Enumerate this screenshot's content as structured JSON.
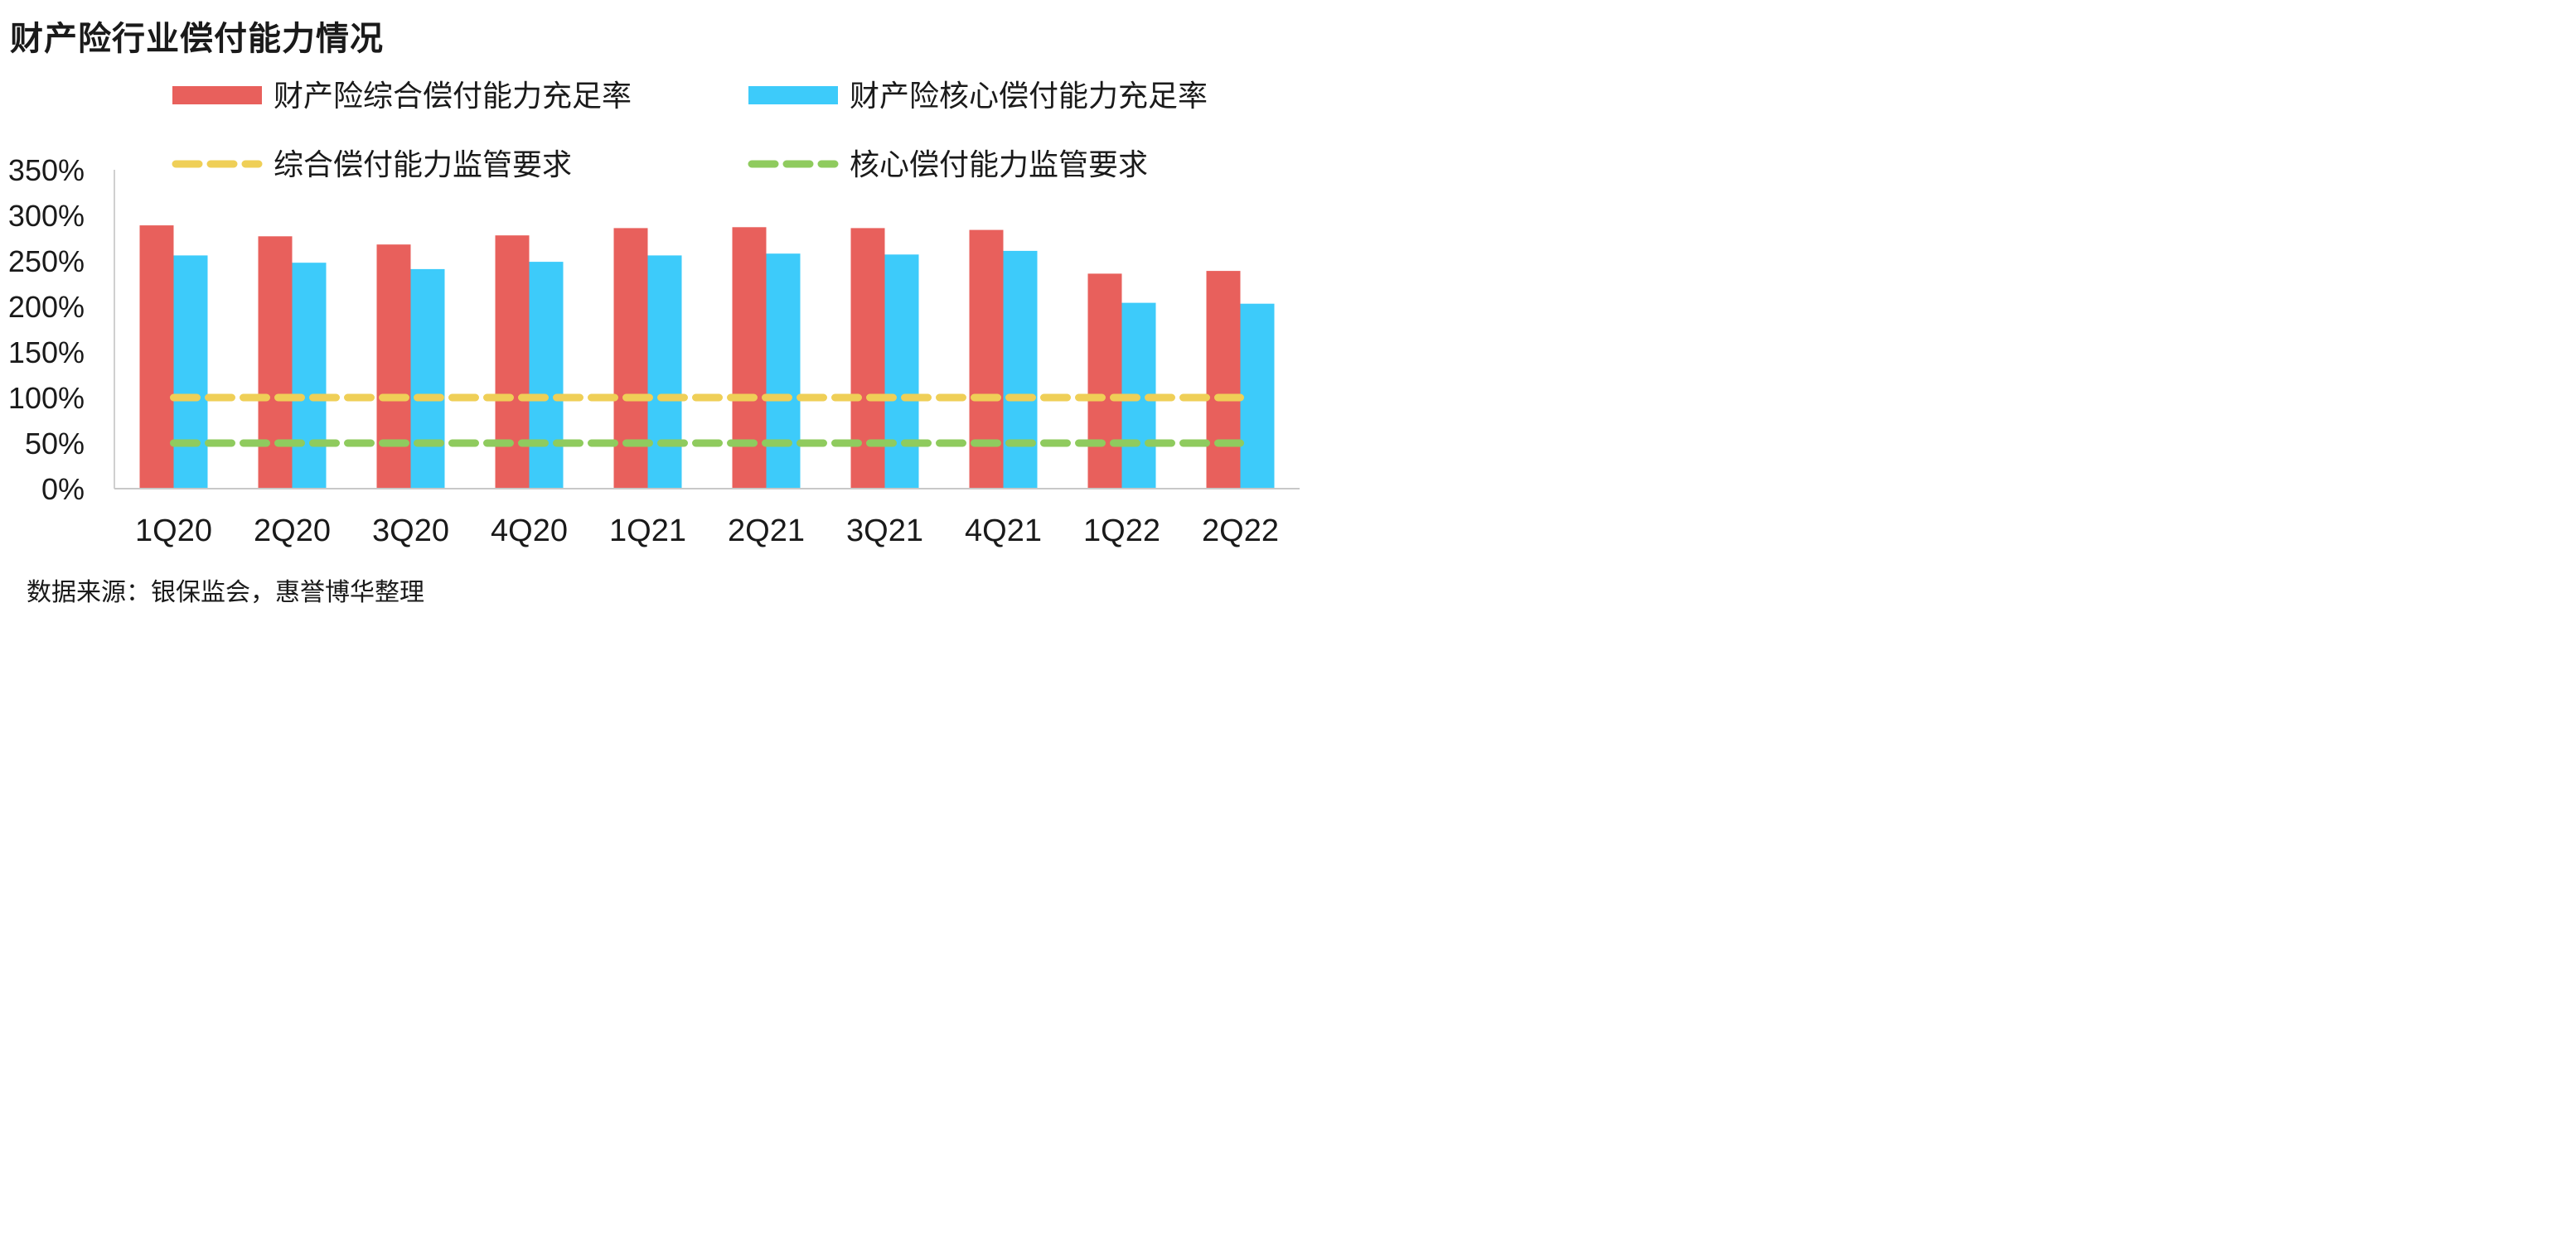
{
  "title": "财产险行业偿付能力情况",
  "source": "数据来源：银保监会，惠誉博华整理",
  "chart_data": {
    "type": "bar",
    "categories": [
      "1Q20",
      "2Q20",
      "3Q20",
      "4Q20",
      "1Q21",
      "2Q21",
      "3Q21",
      "4Q21",
      "1Q22",
      "2Q22"
    ],
    "series": [
      {
        "name": "财产险综合偿付能力充足率",
        "type": "bar",
        "color": "#E8605C",
        "values": [
          289,
          277,
          268,
          278,
          286,
          287,
          286,
          284,
          236,
          239
        ]
      },
      {
        "name": "财产险核心偿付能力充足率",
        "type": "bar",
        "color": "#3DCBFA",
        "values": [
          256,
          248,
          241,
          249,
          256,
          258,
          257,
          261,
          204,
          203
        ]
      },
      {
        "name": "综合偿付能力监管要求",
        "type": "line",
        "dashed": true,
        "color": "#EFCF57",
        "values": [
          100,
          100,
          100,
          100,
          100,
          100,
          100,
          100,
          100,
          100
        ]
      },
      {
        "name": "核心偿付能力监管要求",
        "type": "line",
        "dashed": true,
        "color": "#8FCB5E",
        "values": [
          50,
          50,
          50,
          50,
          50,
          50,
          50,
          50,
          50,
          50
        ]
      }
    ],
    "yticks": [
      "0%",
      "50%",
      "100%",
      "150%",
      "200%",
      "250%",
      "300%",
      "350%"
    ],
    "ylim": [
      0,
      350
    ],
    "unit": "%",
    "legend_position": "top",
    "grid": false
  }
}
